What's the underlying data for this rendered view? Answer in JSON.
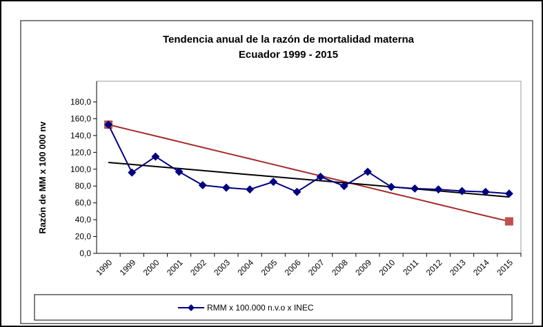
{
  "chart_data": {
    "type": "line",
    "title": "Tendencia anual de la razón de mortalidad materna",
    "subtitle": "Ecuador 1999 - 2015",
    "y_label": "Razón de MM x 100 000 nv",
    "categories": [
      "1990",
      "1999",
      "2000",
      "2001",
      "2002",
      "2003",
      "2004",
      "2005",
      "2006",
      "2007",
      "2008",
      "2009",
      "2010",
      "2011",
      "2012",
      "2013",
      "2014",
      "2015"
    ],
    "series": [
      {
        "color": "#a52a2a",
        "marker": "square",
        "marker_color": "#c0504d",
        "marker_at": "ends",
        "values": [
          153,
          146.2,
          139.5,
          132.7,
          125.9,
          119.1,
          112.4,
          105.6,
          98.8,
          92.1,
          85.3,
          78.5,
          71.7,
          65,
          58.2,
          51.4,
          44.6,
          38
        ]
      },
      {
        "color": "#000000",
        "values": [
          108,
          105.6,
          103.2,
          100.8,
          98.4,
          95.9,
          93.5,
          91.1,
          88.7,
          86.3,
          83.9,
          81.5,
          79.1,
          76.6,
          74.2,
          71.8,
          69.4,
          67
        ]
      },
      {
        "name": "RMM x 100.000 n.v.o x INEC",
        "color": "#000080",
        "marker": "diamond",
        "values": [
          153,
          96,
          115,
          97,
          81,
          78,
          76,
          85,
          73,
          91,
          80,
          97,
          79,
          77,
          76,
          74,
          73,
          71
        ]
      }
    ],
    "ylim": [
      0,
      180
    ],
    "yticks": [
      {
        "value": 0,
        "label": "0,0"
      },
      {
        "value": 20,
        "label": "20,0"
      },
      {
        "value": 40,
        "label": "40,0"
      },
      {
        "value": 60,
        "label": "60,0"
      },
      {
        "value": 80,
        "label": "80,0"
      },
      {
        "value": 100,
        "label": "100,0"
      },
      {
        "value": 120,
        "label": "120,0"
      },
      {
        "value": 140,
        "label": "140,0"
      },
      {
        "value": 160,
        "label": "160,0"
      },
      {
        "value": 180,
        "label": "180,0"
      }
    ],
    "legend": "bottom"
  }
}
